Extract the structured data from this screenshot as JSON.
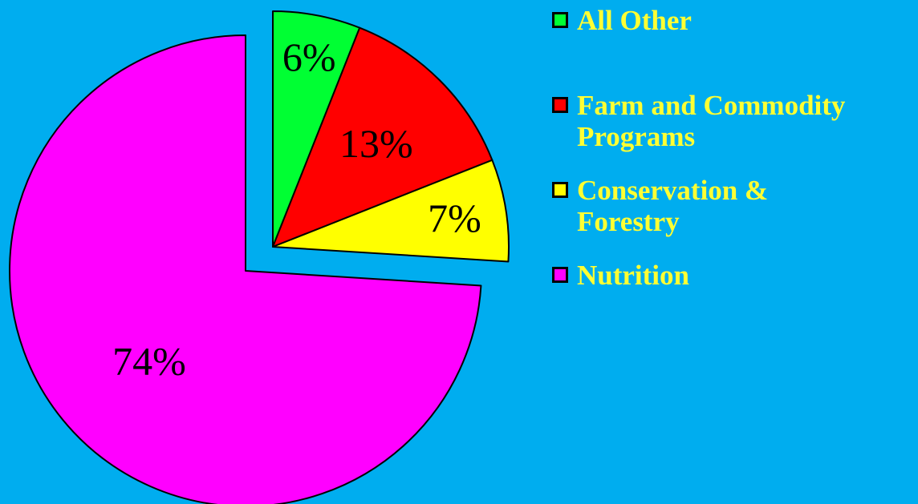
{
  "background_color": "#00ADEF",
  "legend_text_color": "#FFFF33",
  "chart_data": {
    "type": "pie",
    "legend_position": "top-right",
    "slices": [
      {
        "name": "All Other",
        "value": 6,
        "label": "6%",
        "color": "#00FF33",
        "exploded": true
      },
      {
        "name": "Farm and Commodity Programs",
        "value": 13,
        "label": "13%",
        "color": "#FF0000",
        "exploded": true
      },
      {
        "name": "Conservation & Forestry",
        "value": 7,
        "label": "7%",
        "color": "#FFFF00",
        "exploded": true
      },
      {
        "name": "Nutrition",
        "value": 74,
        "label": "74%",
        "color": "#FF00FF",
        "exploded": false
      }
    ]
  },
  "legend": [
    {
      "label": "All Other",
      "color": "#00FF33"
    },
    {
      "label": "Farm and Commodity Programs",
      "color": "#FF0000"
    },
    {
      "label": "Conservation & Forestry",
      "color": "#FFFF00"
    },
    {
      "label": "Nutrition",
      "color": "#FF00FF"
    }
  ]
}
